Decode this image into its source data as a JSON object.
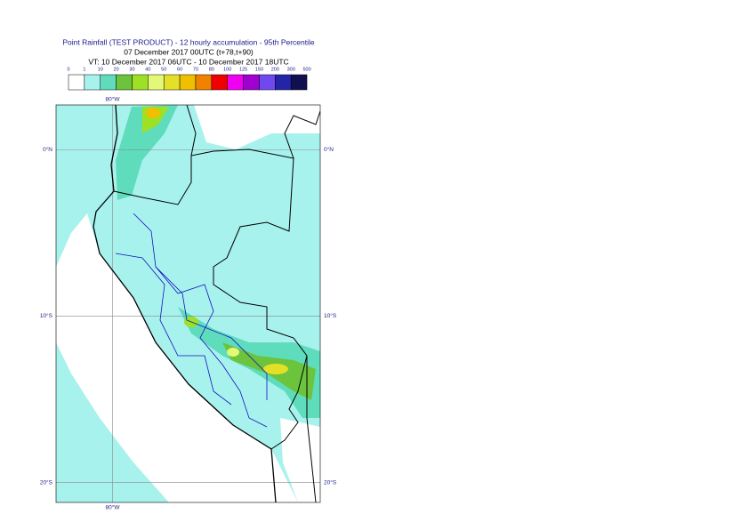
{
  "map": {
    "title": [
      "Point Rainfall (TEST PRODUCT) - 12 hourly accumulation - 95th Percentile",
      "07 December 2017 00UTC (t+78,t+90)",
      "VT: 10 December 2017 06UTC - 10 December 2017 18UTC"
    ],
    "legend": {
      "labels": [
        "0",
        "1",
        "10",
        "20",
        "30",
        "40",
        "50",
        "60",
        "70",
        "80",
        "100",
        "125",
        "150",
        "200",
        "300",
        "500"
      ],
      "colors": [
        "#ffffff",
        "#a8f2ee",
        "#5edcbc",
        "#6cc43c",
        "#9ee024",
        "#e4f878",
        "#e4e028",
        "#f0c000",
        "#f08200",
        "#f00000",
        "#f000f0",
        "#a000d0",
        "#7048f0",
        "#2424a8",
        "#101050"
      ]
    },
    "xlim": [
      -83.4,
      -67.5
    ],
    "ylim": [
      2.7,
      -21.2
    ],
    "xticks": [
      {
        "value": -80,
        "label": "80°W"
      }
    ],
    "yticks": [
      {
        "value": 0,
        "label": "0°N"
      },
      {
        "value": -10,
        "label": "10°S"
      },
      {
        "value": -20,
        "label": "20°S"
      }
    ]
  }
}
